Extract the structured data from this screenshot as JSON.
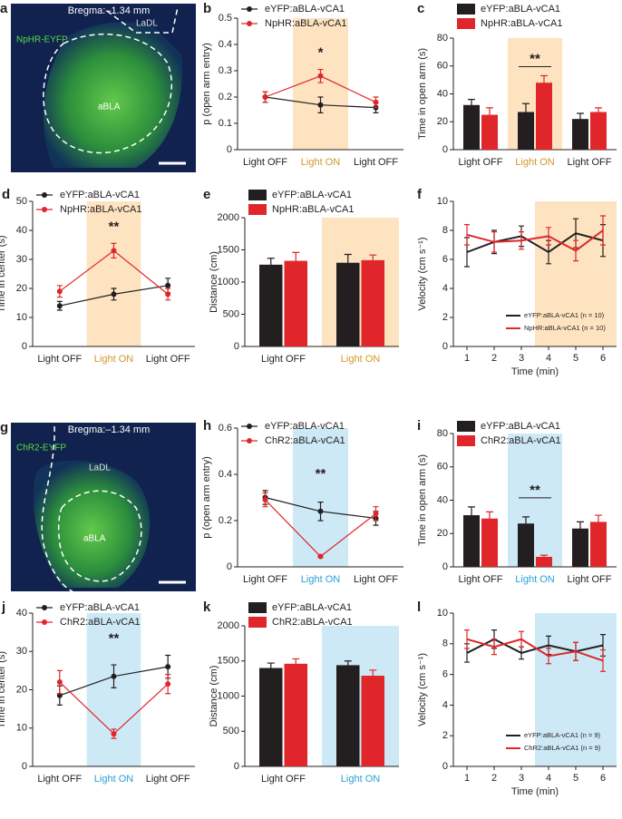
{
  "micrographs": [
    {
      "panel": "a",
      "title": "Bregma:–1.34 mm",
      "stain": "NpHR-EYFP",
      "region_outer": "LaDL",
      "region_inner": "aBLA"
    },
    {
      "panel": "g",
      "title": "Bregma:–1.34 mm",
      "stain": "ChR2-EYFP",
      "region_outer": "LaDL",
      "region_inner": "aBLA"
    }
  ],
  "chart_data": [
    {
      "panel": "b",
      "type": "line",
      "categories": [
        "Light OFF",
        "Light ON",
        "Light OFF"
      ],
      "category_colors": [
        "#231f20",
        "#d4972a",
        "#231f20"
      ],
      "ylabel": "p (open arm entry)",
      "ylim": [
        0,
        0.5
      ],
      "yticks": [
        0,
        0.1,
        0.2,
        0.3,
        0.4,
        0.5
      ],
      "legend": "upper left",
      "highlight": {
        "category": 1,
        "color": "#fde3c0"
      },
      "significance": {
        "label": "*",
        "category": 1,
        "bracket": false
      },
      "series": [
        {
          "name": "eYFP:aBLA-vCA1",
          "color": "#231f20",
          "values": [
            0.2,
            0.17,
            0.16
          ],
          "errors": [
            0.02,
            0.03,
            0.02
          ]
        },
        {
          "name": "NpHR:aBLA-vCA1",
          "color": "#e0262b",
          "values": [
            0.2,
            0.28,
            0.18
          ],
          "errors": [
            0.02,
            0.025,
            0.02
          ]
        }
      ]
    },
    {
      "panel": "c",
      "type": "bar",
      "categories": [
        "Light OFF",
        "Light ON",
        "Light OFF"
      ],
      "category_colors": [
        "#231f20",
        "#d4972a",
        "#231f20"
      ],
      "ylabel": "Time in open arm (s)",
      "ylim": [
        0,
        80
      ],
      "yticks": [
        0,
        20,
        40,
        60,
        80
      ],
      "legend": "upper left",
      "highlight": {
        "category": 1,
        "color": "#fde3c0"
      },
      "significance": {
        "label": "**",
        "category": 1,
        "bracket": true
      },
      "series": [
        {
          "name": "eYFP:aBLA-vCA1",
          "color": "#231f20",
          "values": [
            32,
            27,
            22
          ],
          "errors": [
            4,
            6,
            4
          ]
        },
        {
          "name": "NpHR:aBLA-vCA1",
          "color": "#e0262b",
          "values": [
            25,
            48,
            27
          ],
          "errors": [
            5,
            5,
            3
          ]
        }
      ]
    },
    {
      "panel": "d",
      "type": "line",
      "categories": [
        "Light OFF",
        "Light ON",
        "Light OFF"
      ],
      "category_colors": [
        "#231f20",
        "#d4972a",
        "#231f20"
      ],
      "ylabel": "Time in center (s)",
      "ylim": [
        0,
        50
      ],
      "yticks": [
        0,
        10,
        20,
        30,
        40,
        50
      ],
      "legend": "upper left",
      "highlight": {
        "category": 1,
        "color": "#fde3c0"
      },
      "significance": {
        "label": "**",
        "category": 1,
        "bracket": false
      },
      "series": [
        {
          "name": "eYFP:aBLA-vCA1",
          "color": "#231f20",
          "values": [
            14,
            18,
            21
          ],
          "errors": [
            1.5,
            2,
            2.5
          ]
        },
        {
          "name": "NpHR:aBLA-vCA1",
          "color": "#e0262b",
          "values": [
            19,
            33,
            18
          ],
          "errors": [
            2,
            2.5,
            2
          ]
        }
      ]
    },
    {
      "panel": "e",
      "type": "bar",
      "categories": [
        "Light OFF",
        "Light ON"
      ],
      "category_colors": [
        "#231f20",
        "#d4972a"
      ],
      "ylabel": "Distance (cm)",
      "ylim": [
        0,
        2000
      ],
      "yticks": [
        0,
        500,
        1000,
        1500,
        2000
      ],
      "legend": "upper left",
      "highlight": {
        "category": 1,
        "color": "#fde3c0"
      },
      "series": [
        {
          "name": "eYFP:aBLA-vCA1",
          "color": "#231f20",
          "values": [
            1270,
            1300
          ],
          "errors": [
            100,
            130
          ]
        },
        {
          "name": "NpHR:aBLA-vCA1",
          "color": "#e0262b",
          "values": [
            1330,
            1340
          ],
          "errors": [
            130,
            80
          ]
        }
      ]
    },
    {
      "panel": "f",
      "type": "line",
      "x": [
        1,
        2,
        3,
        4,
        5,
        6
      ],
      "xlim": [
        0.5,
        6.5
      ],
      "xticks": [
        1,
        2,
        3,
        4,
        5,
        6
      ],
      "xlabel": "Time (min)",
      "ylabel": "Velocity (cm s⁻¹)",
      "ylim": [
        0,
        10
      ],
      "yticks": [
        0,
        2,
        4,
        6,
        8,
        10
      ],
      "legend": "lower right",
      "markers": false,
      "highlight": {
        "x": [
          3.5,
          6.5
        ],
        "color": "#fde3c0"
      },
      "series": [
        {
          "name": "eYFP:aBLA-vCA1 (n = 10)",
          "color": "#231f20",
          "values": [
            6.5,
            7.2,
            7.6,
            6.5,
            7.8,
            7.3
          ],
          "errors": [
            1,
            0.8,
            0.7,
            0.8,
            1,
            1.1
          ]
        },
        {
          "name": "NpHR:aBLA-vCA1 (n = 10)",
          "color": "#e0262b",
          "values": [
            7.7,
            7.2,
            7.3,
            7.6,
            6.6,
            8.0
          ],
          "errors": [
            0.7,
            0.7,
            0.6,
            0.6,
            0.7,
            1
          ]
        }
      ]
    },
    {
      "panel": "h",
      "type": "line",
      "categories": [
        "Light OFF",
        "Light ON",
        "Light OFF"
      ],
      "category_colors": [
        "#231f20",
        "#2a9fd6",
        "#231f20"
      ],
      "ylabel": "p (open arm entry)",
      "ylim": [
        0,
        0.6
      ],
      "yticks": [
        0,
        0.2,
        0.4,
        0.6
      ],
      "legend": "upper left",
      "highlight": {
        "category": 1,
        "color": "#cde9f5"
      },
      "significance": {
        "label": "**",
        "category": 1,
        "bracket": false
      },
      "series": [
        {
          "name": "eYFP:aBLA-vCA1",
          "color": "#231f20",
          "values": [
            0.3,
            0.24,
            0.21
          ],
          "errors": [
            0.03,
            0.04,
            0.03
          ]
        },
        {
          "name": "ChR2:aBLA-vCA1",
          "color": "#e0262b",
          "values": [
            0.29,
            0.045,
            0.23
          ],
          "errors": [
            0.03,
            0.005,
            0.03
          ]
        }
      ]
    },
    {
      "panel": "i",
      "type": "bar",
      "categories": [
        "Light OFF",
        "Light ON",
        "Light OFF"
      ],
      "category_colors": [
        "#231f20",
        "#2a9fd6",
        "#231f20"
      ],
      "ylabel": "Time in open arm (s)",
      "ylim": [
        0,
        80
      ],
      "yticks": [
        0,
        20,
        40,
        60,
        80
      ],
      "legend": "upper left",
      "highlight": {
        "category": 1,
        "color": "#cde9f5"
      },
      "significance": {
        "label": "**",
        "category": 1,
        "bracket": true
      },
      "series": [
        {
          "name": "eYFP:aBLA-vCA1",
          "color": "#231f20",
          "values": [
            31,
            26,
            23
          ],
          "errors": [
            5,
            4,
            4
          ]
        },
        {
          "name": "ChR2:aBLA-vCA1",
          "color": "#e0262b",
          "values": [
            29,
            6,
            27
          ],
          "errors": [
            4,
            1,
            4
          ]
        }
      ]
    },
    {
      "panel": "j",
      "type": "line",
      "categories": [
        "Light OFF",
        "Light ON",
        "Light OFF"
      ],
      "category_colors": [
        "#231f20",
        "#2a9fd6",
        "#231f20"
      ],
      "ylabel": "Time in center (s)",
      "ylim": [
        0,
        40
      ],
      "yticks": [
        0,
        10,
        20,
        30,
        40
      ],
      "legend": "upper left",
      "highlight": {
        "category": 1,
        "color": "#cde9f5"
      },
      "significance": {
        "label": "**",
        "category": 1,
        "bracket": false
      },
      "series": [
        {
          "name": "eYFP:aBLA-vCA1",
          "color": "#231f20",
          "values": [
            18.5,
            23.5,
            26
          ],
          "errors": [
            2.5,
            3,
            3
          ]
        },
        {
          "name": "ChR2:aBLA-vCA1",
          "color": "#e0262b",
          "values": [
            22,
            8.5,
            21.5
          ],
          "errors": [
            3,
            1.2,
            2.5
          ]
        }
      ]
    },
    {
      "panel": "k",
      "type": "bar",
      "categories": [
        "Light OFF",
        "Light ON"
      ],
      "category_colors": [
        "#231f20",
        "#2a9fd6"
      ],
      "ylabel": "Distance (cm)",
      "ylim": [
        0,
        2000
      ],
      "yticks": [
        0,
        500,
        1000,
        1500,
        2000
      ],
      "legend": "upper left",
      "highlight": {
        "category": 1,
        "color": "#cde9f5"
      },
      "series": [
        {
          "name": "eYFP:aBLA-vCA1",
          "color": "#231f20",
          "values": [
            1400,
            1440
          ],
          "errors": [
            70,
            60
          ]
        },
        {
          "name": "ChR2:aBLA-vCA1",
          "color": "#e0262b",
          "values": [
            1460,
            1290
          ],
          "errors": [
            70,
            80
          ]
        }
      ]
    },
    {
      "panel": "l",
      "type": "line",
      "x": [
        1,
        2,
        3,
        4,
        5,
        6
      ],
      "xlim": [
        0.5,
        6.5
      ],
      "xticks": [
        1,
        2,
        3,
        4,
        5,
        6
      ],
      "xlabel": "Time (min)",
      "ylabel": "Velocity (cm s⁻¹)",
      "ylim": [
        0,
        10
      ],
      "yticks": [
        0,
        2,
        4,
        6,
        8,
        10
      ],
      "legend": "lower right",
      "markers": false,
      "highlight": {
        "x": [
          3.5,
          6.5
        ],
        "color": "#cde9f5"
      },
      "series": [
        {
          "name": "eYFP:aBLA-vCA1 (n = 9)",
          "color": "#231f20",
          "values": [
            7.4,
            8.3,
            7.4,
            7.9,
            7.5,
            7.9
          ],
          "errors": [
            0.6,
            0.6,
            0.4,
            0.6,
            0.6,
            0.7
          ]
        },
        {
          "name": "ChR2:aBLA-vCA1 (n = 9)",
          "color": "#e0262b",
          "values": [
            8.3,
            7.8,
            8.3,
            7.2,
            7.5,
            6.9
          ],
          "errors": [
            0.6,
            0.5,
            0.5,
            0.5,
            0.6,
            0.7
          ]
        }
      ]
    }
  ]
}
